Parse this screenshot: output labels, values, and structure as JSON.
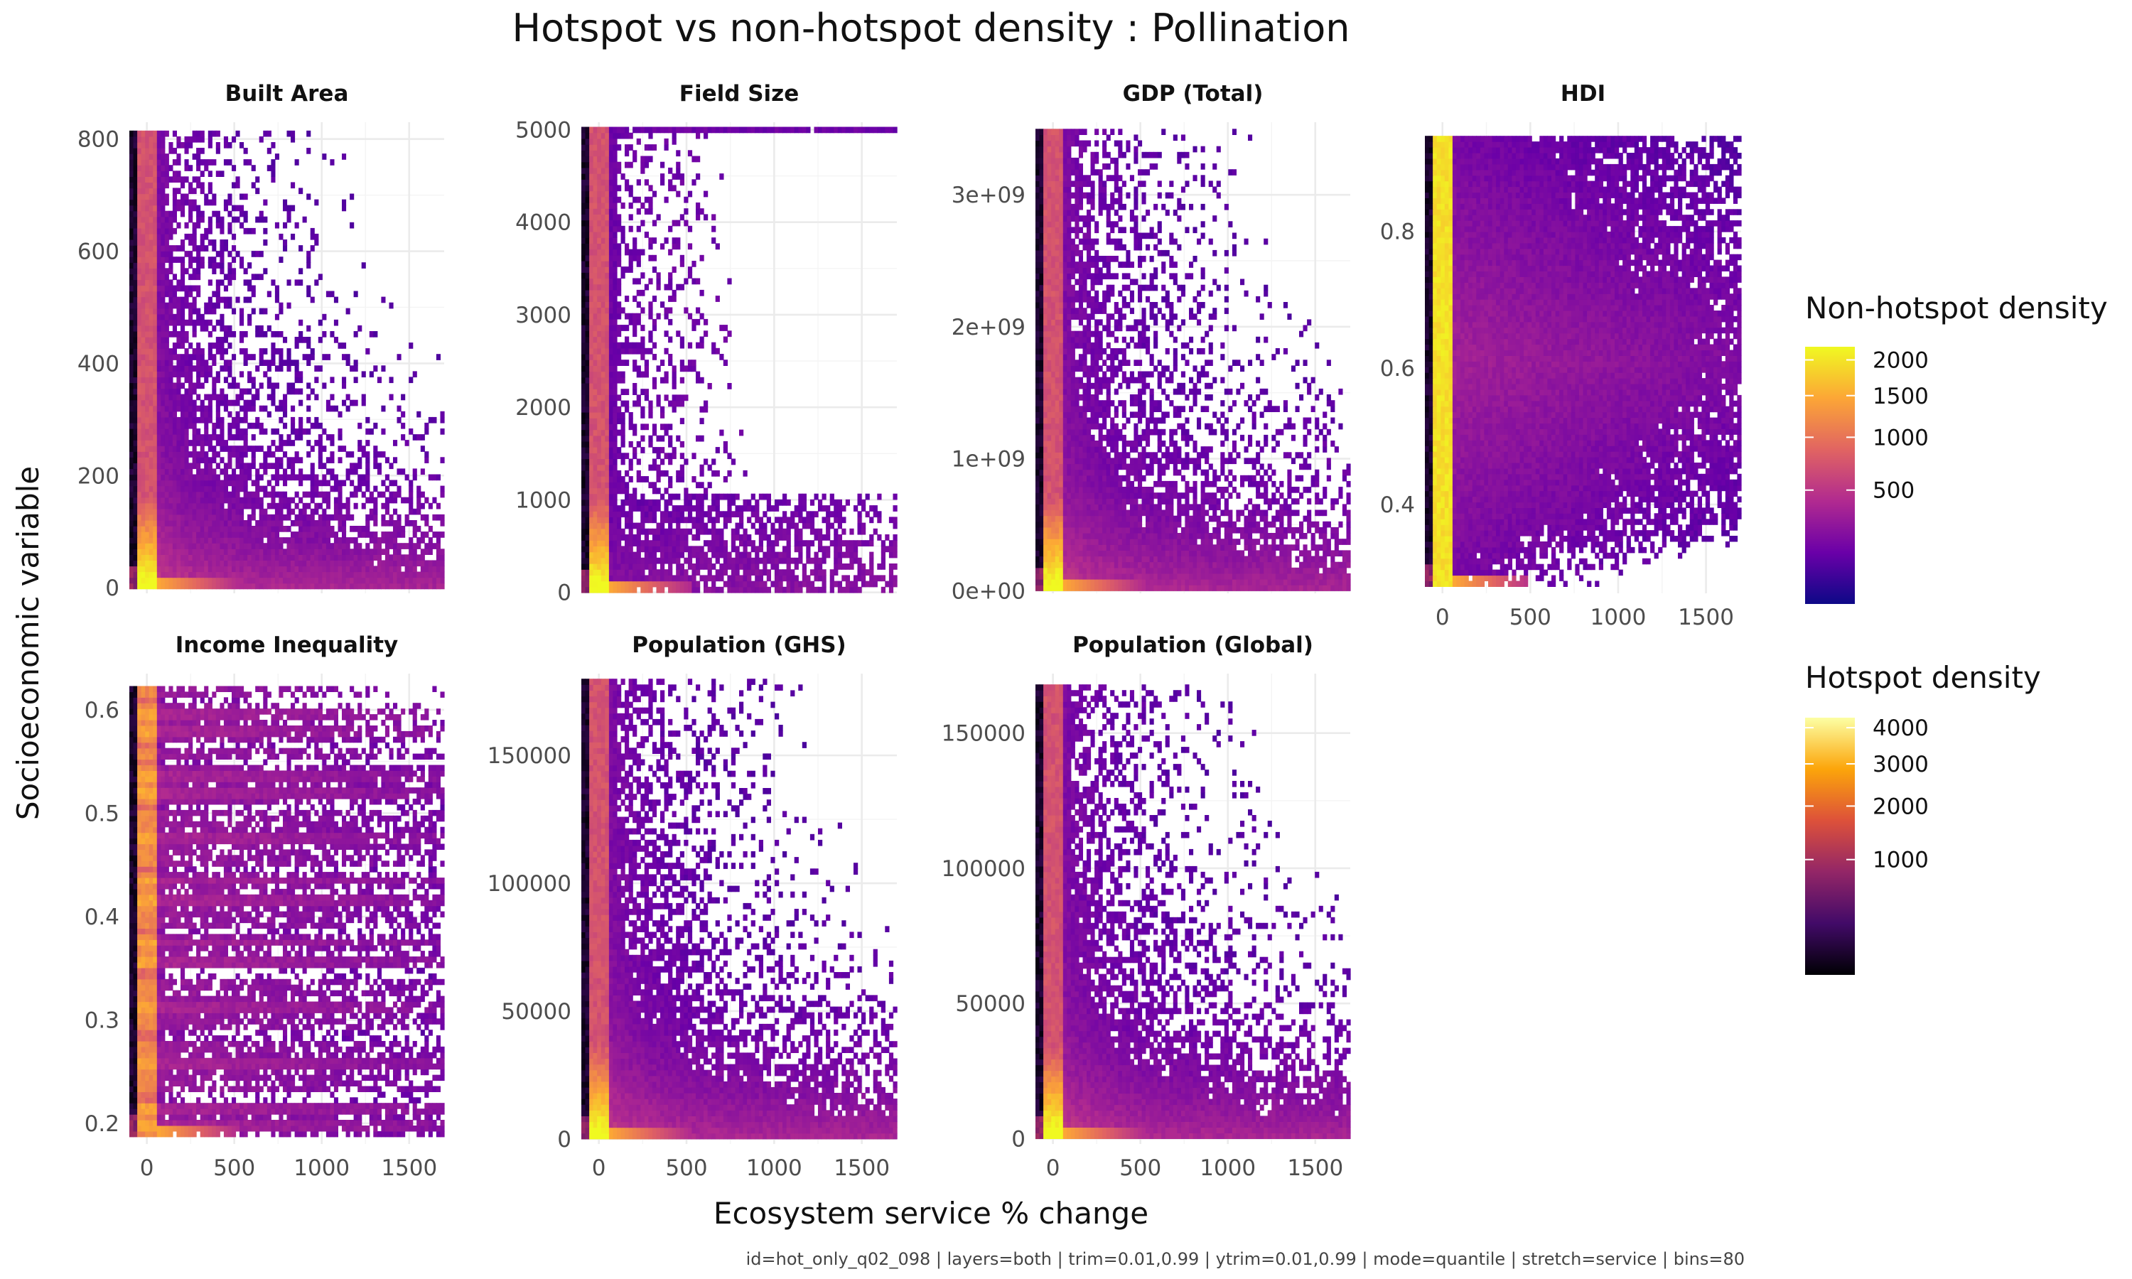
{
  "chart_data": {
    "type": "heatmap",
    "title": "Hotspot vs non-hotspot density : Pollination",
    "xlabel": "Ecosystem service % change",
    "ylabel": "Socioeconomic variable",
    "caption": "id=hot_only_q02_098 | layers=both | trim=0.01,0.99 | ytrim=0.01,0.99 | mode=quantile | stretch=service | bins=80",
    "x_range": [
      -100,
      1700
    ],
    "x_ticks": [
      0,
      500,
      1000,
      1500
    ],
    "x_tick_labels": [
      "0",
      "500",
      "1000",
      "1500"
    ],
    "bins": 80,
    "grid": true,
    "legend_position": "right",
    "legends": [
      {
        "title": "Non-hotspot density",
        "palette": "plasma",
        "colors": [
          "#0d0887",
          "#6a00a8",
          "#b12a90",
          "#e16462",
          "#fca636",
          "#f0f921"
        ],
        "ticks": [
          500,
          1000,
          1500,
          2000
        ],
        "tick_labels": [
          "500",
          "1000",
          "1500",
          "2000"
        ],
        "range": [
          0,
          2200
        ]
      },
      {
        "title": "Hotspot density",
        "palette": "inferno",
        "colors": [
          "#000004",
          "#420a68",
          "#932667",
          "#dd513a",
          "#fca50a",
          "#fcffa4"
        ],
        "ticks": [
          1000,
          2000,
          3000,
          4000
        ],
        "tick_labels": [
          "1000",
          "2000",
          "3000",
          "4000"
        ],
        "range": [
          0,
          4300
        ]
      }
    ],
    "panels": [
      {
        "name": "Built Area",
        "y_range": [
          -10,
          830
        ],
        "y_ticks": [
          0,
          200,
          400,
          600,
          800
        ],
        "y_tick_labels": [
          "0",
          "200",
          "400",
          "600",
          "800"
        ],
        "data_y": [
          -2,
          815
        ],
        "band": "none"
      },
      {
        "name": "Field Size",
        "y_range": [
          -10,
          5080
        ],
        "y_ticks": [
          0,
          1000,
          2000,
          3000,
          4000,
          5000
        ],
        "y_tick_labels": [
          "0",
          "1000",
          "2000",
          "3000",
          "4000",
          "5000"
        ],
        "data_y": [
          -2,
          5030
        ],
        "band": "fieldsize"
      },
      {
        "name": "GDP (Total)",
        "y_range": [
          -20000000.0,
          3550000000.0
        ],
        "y_ticks": [
          0,
          1000000000.0,
          2000000000.0,
          3000000000.0
        ],
        "y_tick_labels": [
          "0e+00",
          "1e+09",
          "2e+09",
          "3e+09"
        ],
        "data_y": [
          0,
          3500000000.0
        ],
        "band": "none"
      },
      {
        "name": "HDI",
        "y_range": [
          0.27,
          0.96
        ],
        "y_ticks": [
          0.4,
          0.6,
          0.8
        ],
        "y_tick_labels": [
          "0.4",
          "0.6",
          "0.8"
        ],
        "data_y": [
          0.28,
          0.94
        ],
        "band": "hdi"
      },
      {
        "name": "Income Inequality",
        "y_range": [
          0.18,
          0.635
        ],
        "y_ticks": [
          0.2,
          0.3,
          0.4,
          0.5,
          0.6
        ],
        "y_tick_labels": [
          "0.2",
          "0.3",
          "0.4",
          "0.5",
          "0.6"
        ],
        "data_y": [
          0.187,
          0.623
        ],
        "band": "striped"
      },
      {
        "name": "Population (GHS)",
        "y_range": [
          -2000,
          182000
        ],
        "y_ticks": [
          0,
          50000,
          100000,
          150000
        ],
        "y_tick_labels": [
          "0",
          "50000",
          "100000",
          "150000"
        ],
        "data_y": [
          0,
          180000
        ],
        "band": "none"
      },
      {
        "name": "Population (Global)",
        "y_range": [
          -2000,
          172000
        ],
        "y_ticks": [
          0,
          50000,
          100000,
          150000
        ],
        "y_tick_labels": [
          "0",
          "50000",
          "100000",
          "150000"
        ],
        "data_y": [
          0,
          168000
        ],
        "band": "none"
      }
    ]
  }
}
